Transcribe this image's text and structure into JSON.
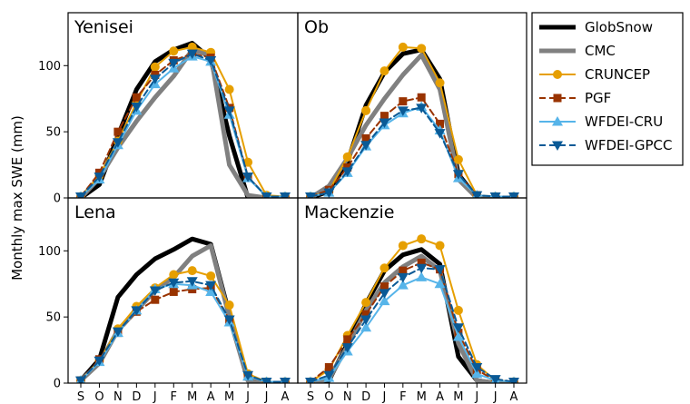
{
  "chart_data": {
    "type": "line",
    "ylabel": "Monthly max SWE (mm)",
    "xlabel": "",
    "ylim": [
      0,
      140
    ],
    "yticks": [
      0,
      50,
      100
    ],
    "categories": [
      "S",
      "O",
      "N",
      "D",
      "J",
      "F",
      "M",
      "A",
      "M",
      "J",
      "J",
      "A"
    ],
    "legend_position": "right",
    "series_styles": [
      {
        "name": "GlobSnow",
        "color": "#000000",
        "marker": "none",
        "dash": "solid",
        "width": 5
      },
      {
        "name": "CMC",
        "color": "#808080",
        "marker": "none",
        "dash": "solid",
        "width": 5
      },
      {
        "name": "CRUNCEP",
        "color": "#E69F00",
        "marker": "circle",
        "dash": "solid",
        "width": 2
      },
      {
        "name": "PGF",
        "color": "#993300",
        "marker": "square",
        "dash": "dashed",
        "width": 2
      },
      {
        "name": "WFDEI-CRU",
        "color": "#56B4E9",
        "marker": "triangle-up",
        "dash": "solid",
        "width": 2
      },
      {
        "name": "WFDEI-GPCC",
        "color": "#0A5A96",
        "marker": "triangle-down",
        "dash": "dashed",
        "width": 2
      }
    ],
    "panels": [
      {
        "title": "Yenisei",
        "series": [
          {
            "name": "GlobSnow",
            "values": [
              0,
              10,
              47,
              82,
              103,
              112,
              117,
              105,
              47,
              0,
              0,
              0
            ]
          },
          {
            "name": "CMC",
            "values": [
              0,
              15,
              38,
              58,
              76,
              92,
              112,
              108,
              25,
              2,
              0,
              0
            ]
          },
          {
            "name": "CRUNCEP",
            "values": [
              1,
              17,
              43,
              72,
              99,
              111,
              114,
              110,
              82,
              27,
              2,
              1
            ]
          },
          {
            "name": "PGF",
            "values": [
              1,
              19,
              50,
              76,
              93,
              104,
              109,
              106,
              68,
              16,
              1,
              1
            ]
          },
          {
            "name": "WFDEI-CRU",
            "values": [
              1,
              14,
              40,
              66,
              86,
              98,
              107,
              103,
              63,
              15,
              1,
              1
            ]
          },
          {
            "name": "WFDEI-GPCC",
            "values": [
              1,
              16,
              42,
              69,
              90,
              102,
              109,
              104,
              66,
              16,
              1,
              1
            ]
          }
        ]
      },
      {
        "title": "Ob",
        "series": [
          {
            "name": "GlobSnow",
            "values": [
              0,
              5,
              27,
              70,
              95,
              109,
              112,
              90,
              18,
              0,
              0,
              0
            ]
          },
          {
            "name": "CMC",
            "values": [
              0,
              9,
              30,
              55,
              75,
              93,
              108,
              82,
              14,
              0,
              0,
              0
            ]
          },
          {
            "name": "CRUNCEP",
            "values": [
              1,
              5,
              31,
              66,
              96,
              114,
              113,
              87,
              29,
              2,
              1,
              1
            ]
          },
          {
            "name": "PGF",
            "values": [
              1,
              6,
              23,
              45,
              62,
              73,
              76,
              56,
              18,
              2,
              1,
              1
            ]
          },
          {
            "name": "WFDEI-CRU",
            "values": [
              1,
              4,
              19,
              39,
              55,
              64,
              69,
              51,
              15,
              2,
              1,
              1
            ]
          },
          {
            "name": "WFDEI-GPCC",
            "values": [
              1,
              4,
              20,
              40,
              57,
              66,
              68,
              49,
              18,
              2,
              1,
              1
            ]
          }
        ]
      },
      {
        "title": "Lena",
        "series": [
          {
            "name": "GlobSnow",
            "values": [
              2,
              18,
              65,
              82,
              94,
              101,
              109,
              105,
              52,
              2,
              0,
              0
            ]
          },
          {
            "name": "CMC",
            "values": [
              2,
              15,
              40,
              55,
              70,
              80,
              96,
              104,
              50,
              2,
              0,
              0
            ]
          },
          {
            "name": "CRUNCEP",
            "values": [
              2,
              17,
              41,
              58,
              72,
              82,
              85,
              81,
              59,
              7,
              1,
              1
            ]
          },
          {
            "name": "PGF",
            "values": [
              2,
              18,
              38,
              54,
              63,
              69,
              71,
              72,
              48,
              5,
              1,
              1
            ]
          },
          {
            "name": "WFDEI-CRU",
            "values": [
              2,
              16,
              38,
              55,
              71,
              75,
              74,
              69,
              46,
              5,
              1,
              1
            ]
          },
          {
            "name": "WFDEI-GPCC",
            "values": [
              2,
              17,
              39,
              55,
              70,
              76,
              77,
              74,
              48,
              6,
              1,
              1
            ]
          }
        ]
      },
      {
        "title": "Mackenzie",
        "series": [
          {
            "name": "GlobSnow",
            "values": [
              0,
              2,
              30,
              60,
              85,
              97,
              101,
              90,
              20,
              2,
              0,
              0
            ]
          },
          {
            "name": "CMC",
            "values": [
              0,
              3,
              28,
              55,
              76,
              88,
              96,
              85,
              30,
              2,
              0,
              0
            ]
          },
          {
            "name": "CRUNCEP",
            "values": [
              1,
              10,
              36,
              61,
              87,
              104,
              109,
              104,
              55,
              14,
              2,
              1
            ]
          },
          {
            "name": "PGF",
            "values": [
              1,
              12,
              33,
              52,
              73,
              85,
              91,
              86,
              38,
              10,
              2,
              1
            ]
          },
          {
            "name": "WFDEI-CRU",
            "values": [
              1,
              4,
              24,
              42,
              62,
              74,
              80,
              75,
              35,
              7,
              2,
              1
            ]
          },
          {
            "name": "WFDEI-GPCC",
            "values": [
              1,
              6,
              27,
              48,
              68,
              80,
              87,
              86,
              42,
              12,
              3,
              1
            ]
          }
        ]
      }
    ]
  }
}
